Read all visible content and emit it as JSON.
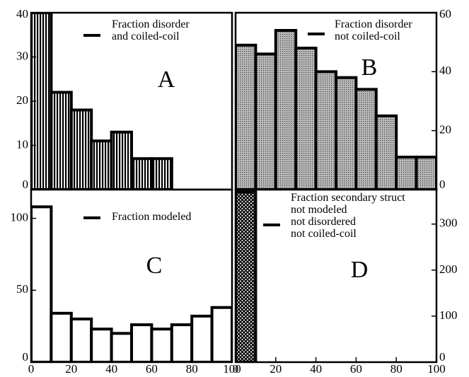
{
  "chart_data": [
    {
      "type": "histogram",
      "annotation": "A",
      "pattern": "vertical-lines",
      "bins": [
        0,
        10,
        20,
        30,
        40,
        50,
        60,
        70,
        80,
        90,
        100
      ],
      "series": [
        {
          "name": "Fraction disorder\nand coiled-coil",
          "color": "#000000",
          "values": [
            40,
            22,
            18,
            11,
            13,
            7,
            7,
            0,
            0,
            0
          ]
        }
      ],
      "xlim": [
        0,
        100
      ],
      "ylim": [
        0,
        40
      ],
      "yticks": [
        0,
        10,
        20,
        30,
        40
      ],
      "y_axis_side": "left"
    },
    {
      "type": "histogram",
      "annotation": "B",
      "pattern": "dots",
      "bins": [
        0,
        10,
        20,
        30,
        40,
        50,
        60,
        70,
        80,
        90,
        100
      ],
      "series": [
        {
          "name": "Fraction disorder\nnot coiled-coil",
          "color": "#000000",
          "values": [
            49,
            46,
            54,
            48,
            40,
            38,
            34,
            25,
            11,
            11
          ]
        }
      ],
      "xlim": [
        0,
        100
      ],
      "ylim": [
        0,
        60
      ],
      "yticks": [
        0,
        20,
        40,
        60
      ],
      "y_axis_side": "right"
    },
    {
      "type": "histogram",
      "annotation": "C",
      "pattern": "none",
      "bins": [
        0,
        10,
        20,
        30,
        40,
        50,
        60,
        70,
        80,
        90,
        100
      ],
      "series": [
        {
          "name": "Fraction modeled",
          "color": "#000000",
          "values": [
            108,
            34,
            30,
            23,
            20,
            26,
            23,
            26,
            32,
            38
          ]
        }
      ],
      "xlim": [
        0,
        100
      ],
      "xticks": [
        0,
        20,
        40,
        60,
        80,
        100
      ],
      "ylim": [
        0,
        120
      ],
      "yticks": [
        0,
        50,
        100
      ],
      "y_axis_side": "left"
    },
    {
      "type": "histogram",
      "annotation": "D",
      "pattern": "crosshatch",
      "bins": [
        0,
        10,
        20,
        30,
        40,
        50,
        60,
        70,
        80,
        90,
        100
      ],
      "series": [
        {
          "name": "Fraction secondary struct\nnot modeled\nnot disordered\nnot coiled-coil",
          "color": "#000000",
          "values": [
            370,
            0,
            0,
            0,
            0,
            0,
            0,
            0,
            0,
            0
          ]
        }
      ],
      "xlim": [
        0,
        100
      ],
      "xticks": [
        0,
        20,
        40,
        60,
        80,
        100
      ],
      "ylim": [
        0,
        375
      ],
      "yticks": [
        0,
        100,
        200,
        300
      ],
      "y_axis_side": "right"
    }
  ]
}
